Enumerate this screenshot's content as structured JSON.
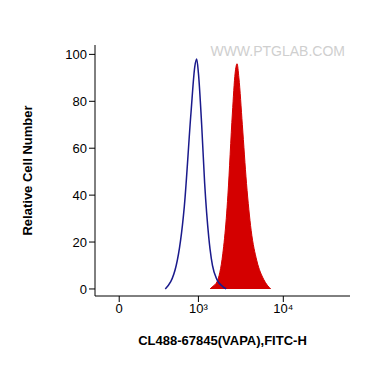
{
  "chart_data": {
    "type": "histogram overlay",
    "watermark": "WWW.PTGLAB.COM",
    "x_label": "CL488-67845(VAPA),FITC-H",
    "y_label": "Relative Cell Number",
    "x": [
      341,
      500,
      650,
      800,
      900,
      950,
      1000,
      1100,
      1200,
      1350,
      1400,
      1500,
      1700,
      2000,
      2200,
      2300,
      2600,
      2800,
      2950,
      3100,
      3400,
      3800,
      4300,
      5000,
      6000,
      7200
    ],
    "series": [
      {
        "type": "line",
        "color": "#1a1a8c",
        "values": [
          0,
          10,
          35,
          75,
          95,
          98,
          92,
          70,
          45,
          22,
          17,
          10,
          4,
          1,
          0,
          null,
          null,
          null,
          null,
          null,
          null,
          null,
          null,
          null,
          null,
          null
        ]
      },
      {
        "type": "area",
        "color": "#d40000",
        "values": [
          null,
          null,
          null,
          null,
          null,
          null,
          null,
          null,
          null,
          null,
          0,
          1,
          3,
          15,
          30,
          40,
          75,
          92,
          96,
          90,
          70,
          45,
          25,
          12,
          4,
          0
        ]
      }
    ],
    "xlim": [
      -130,
      56000
    ],
    "xticks": [
      0,
      {
        "value": 1000,
        "label": "10³"
      },
      {
        "value": 10000,
        "label": "10⁴"
      }
    ],
    "ylim": [
      -3,
      104
    ],
    "yticks": [
      0,
      20,
      40,
      60,
      80,
      100
    ],
    "grid": false
  }
}
